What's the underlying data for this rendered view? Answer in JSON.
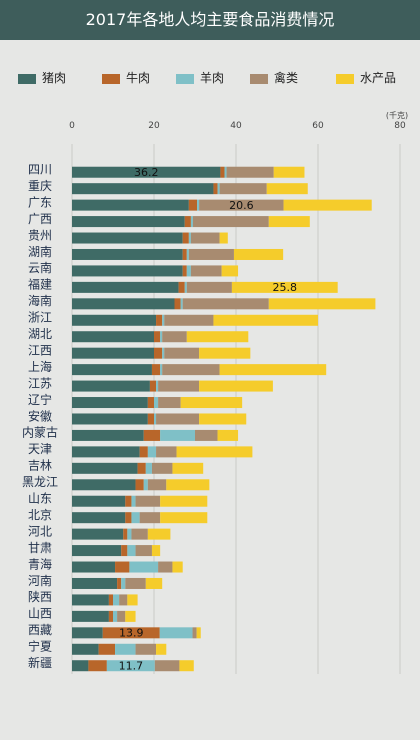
{
  "title": "2017年各地人均主要食品消费情况",
  "legend": [
    {
      "label": "猪肉",
      "color": "#3f6b66"
    },
    {
      "label": "牛肉",
      "color": "#b8662a"
    },
    {
      "label": "羊肉",
      "color": "#7fc0c7"
    },
    {
      "label": "禽类",
      "color": "#a88b70"
    },
    {
      "label": "水产品",
      "color": "#f5cc2b"
    }
  ],
  "chart_data": {
    "type": "bar",
    "orientation": "horizontal",
    "stacked": true,
    "unit": "(千克)",
    "xlim": [
      0,
      80
    ],
    "xticks": [
      0,
      20,
      40,
      60,
      80
    ],
    "grid": true,
    "categories": [
      "四川",
      "重庆",
      "广东",
      "广西",
      "贵州",
      "湖南",
      "云南",
      "福建",
      "海南",
      "浙江",
      "湖北",
      "江西",
      "上海",
      "江苏",
      "辽宁",
      "安徽",
      "内蒙古",
      "天津",
      "吉林",
      "黑龙江",
      "山东",
      "北京",
      "河北",
      "甘肃",
      "青海",
      "河南",
      "陕西",
      "山西",
      "西藏",
      "宁夏",
      "新疆"
    ],
    "series": [
      {
        "name": "猪肉",
        "color": "#3f6b66",
        "values": [
          36.2,
          34.5,
          28.5,
          27.5,
          27.0,
          27.0,
          27.0,
          26.0,
          25.0,
          20.5,
          20.0,
          20.0,
          19.5,
          19.0,
          18.5,
          18.5,
          17.5,
          16.5,
          16.0,
          15.5,
          13.0,
          13.0,
          12.5,
          12.0,
          10.5,
          11.0,
          9.0,
          9.0,
          7.5,
          6.5,
          4.0
        ]
      },
      {
        "name": "牛肉",
        "color": "#b8662a",
        "values": [
          1.0,
          1.0,
          2.0,
          1.5,
          1.5,
          1.0,
          1.0,
          1.5,
          1.5,
          1.5,
          1.5,
          2.0,
          2.0,
          1.5,
          1.5,
          1.5,
          4.0,
          2.0,
          2.0,
          2.0,
          1.5,
          1.5,
          1.0,
          1.5,
          3.5,
          1.0,
          1.0,
          1.0,
          13.9,
          4.0,
          4.5
        ]
      },
      {
        "name": "羊肉",
        "color": "#7fc0c7",
        "values": [
          0.5,
          0.5,
          0.5,
          0.5,
          0.5,
          0.5,
          1.0,
          0.5,
          0.5,
          0.5,
          0.5,
          0.5,
          0.5,
          0.5,
          1.0,
          0.5,
          8.5,
          2.0,
          1.5,
          1.0,
          1.0,
          2.0,
          1.0,
          2.0,
          7.0,
          1.0,
          1.5,
          1.0,
          8.0,
          5.0,
          11.7
        ]
      },
      {
        "name": "禽类",
        "color": "#a88b70",
        "values": [
          11.5,
          11.5,
          20.6,
          18.5,
          7.0,
          11.0,
          7.5,
          11.0,
          21.0,
          12.0,
          6.0,
          8.5,
          14.0,
          10.0,
          5.5,
          10.5,
          5.5,
          5.0,
          5.0,
          4.5,
          6.0,
          5.0,
          4.0,
          4.0,
          3.5,
          5.0,
          2.0,
          2.0,
          1.0,
          5.0,
          6.0
        ]
      },
      {
        "name": "水产品",
        "color": "#f5cc2b",
        "values": [
          7.5,
          10.0,
          21.5,
          10.0,
          2.0,
          12.0,
          4.0,
          25.8,
          26.0,
          25.5,
          15.0,
          12.5,
          26.0,
          18.0,
          15.0,
          11.5,
          5.0,
          18.5,
          7.5,
          10.5,
          11.5,
          11.5,
          5.5,
          2.0,
          2.5,
          4.0,
          2.5,
          2.5,
          1.0,
          2.5,
          3.5
        ]
      }
    ],
    "data_labels": [
      {
        "category": "四川",
        "series": "猪肉",
        "text": "36.2"
      },
      {
        "category": "广东",
        "series": "禽类",
        "text": "20.6"
      },
      {
        "category": "福建",
        "series": "水产品",
        "text": "25.8"
      },
      {
        "category": "西藏",
        "series": "牛肉",
        "text": "13.9"
      },
      {
        "category": "新疆",
        "series": "羊肉",
        "text": "11.7"
      }
    ]
  }
}
